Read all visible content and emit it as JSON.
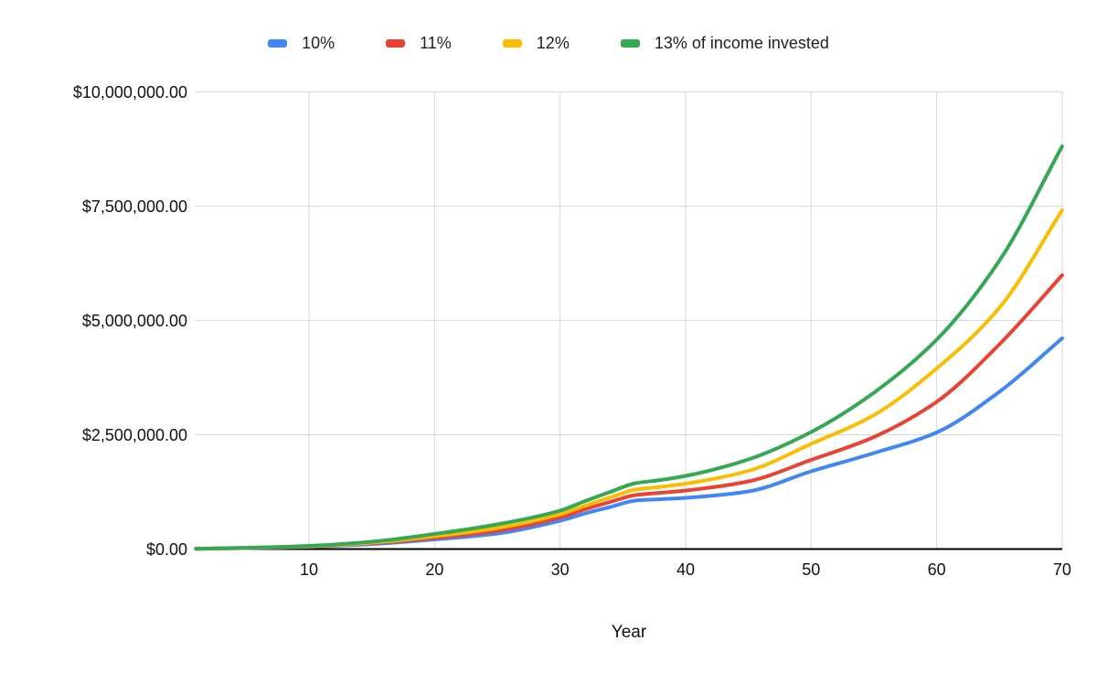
{
  "chart_data": {
    "type": "line",
    "title": "",
    "xlabel": "Year",
    "ylabel": "",
    "x_range": [
      1,
      70
    ],
    "ylim": [
      0,
      10000000
    ],
    "grid": true,
    "legend_position": "top",
    "x_ticks": [
      10,
      20,
      30,
      40,
      50,
      60,
      70
    ],
    "y_ticks": [
      {
        "value": 0,
        "label": "$0.00"
      },
      {
        "value": 2500000,
        "label": "$2,500,000.00"
      },
      {
        "value": 5000000,
        "label": "$5,000,000.00"
      },
      {
        "value": 7500000,
        "label": "$7,500,000.00"
      },
      {
        "value": 10000000,
        "label": "$10,000,000.00"
      }
    ],
    "x": [
      1,
      5,
      10,
      15,
      20,
      25,
      30,
      32,
      34,
      36,
      38,
      40,
      45,
      50,
      55,
      60,
      65,
      70
    ],
    "series": [
      {
        "name": "10%",
        "color": "#4285F4",
        "values": [
          5000,
          20000,
          50000,
          110000,
          210000,
          340000,
          620000,
          780000,
          920000,
          1060000,
          1090000,
          1120000,
          1260000,
          1700000,
          2100000,
          2550000,
          3440000,
          4610000
        ]
      },
      {
        "name": "11%",
        "color": "#EA4335",
        "values": [
          6000,
          22000,
          55000,
          130000,
          244000,
          400000,
          690000,
          870000,
          1030000,
          1180000,
          1230000,
          1280000,
          1480000,
          1950000,
          2450000,
          3220000,
          4480000,
          5990000
        ]
      },
      {
        "name": "12%",
        "color": "#FBBC04",
        "values": [
          7000,
          25000,
          60000,
          140000,
          280000,
          460000,
          760000,
          950000,
          1130000,
          1300000,
          1360000,
          1430000,
          1710000,
          2300000,
          2930000,
          3950000,
          5280000,
          7410000
        ]
      },
      {
        "name": "13% of income invested",
        "color": "#34A853",
        "values": [
          8000,
          28000,
          70000,
          160000,
          330000,
          540000,
          840000,
          1050000,
          1250000,
          1440000,
          1510000,
          1600000,
          1960000,
          2560000,
          3420000,
          4580000,
          6310000,
          8810000
        ]
      }
    ],
    "style": {
      "gridline_color": "#d9d9d9",
      "axis_line_color": "#000000",
      "line_width": 4
    }
  }
}
